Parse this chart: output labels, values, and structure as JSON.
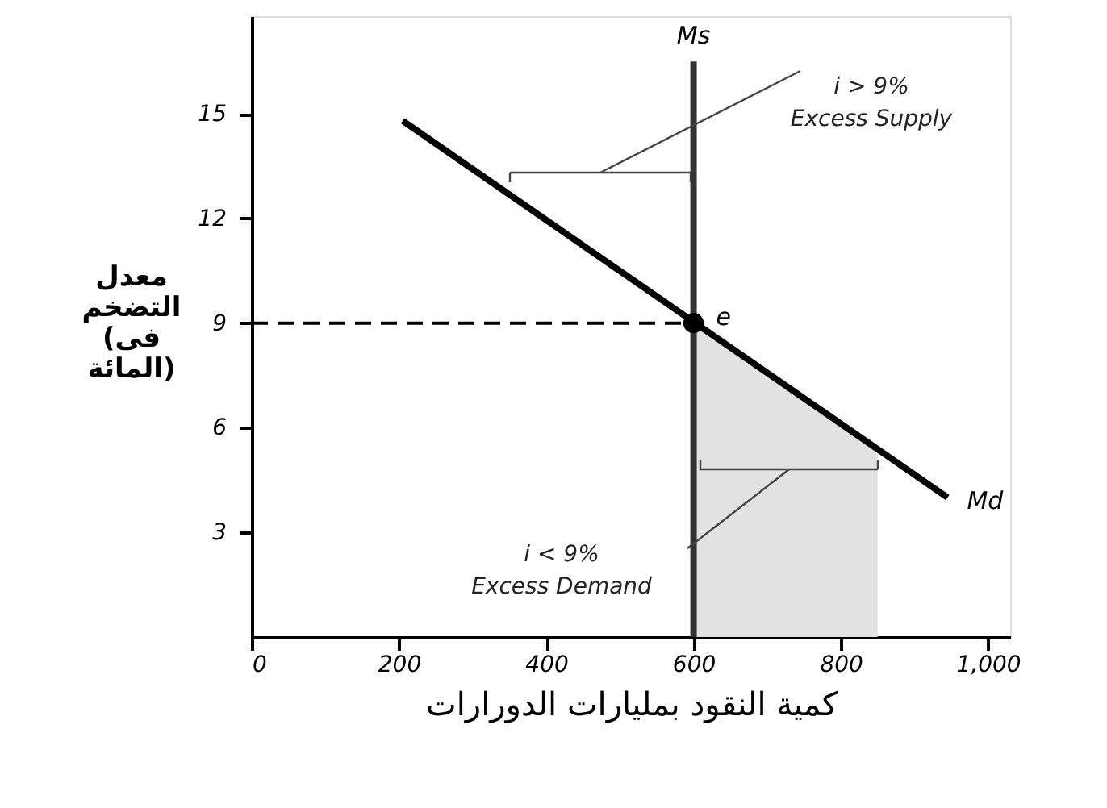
{
  "chart_data": {
    "type": "line",
    "xlabel": "كمية النقود بمليارات الدورارات",
    "ylabel": "معدل التضخم (فى المائة)",
    "xlim": [
      0,
      1030
    ],
    "ylim": [
      0,
      17.8
    ],
    "xticks": [
      0,
      200,
      400,
      600,
      800,
      {
        "value": 1000,
        "label": "1,000"
      }
    ],
    "yticks": [
      3,
      6,
      9,
      12,
      15
    ],
    "grid": false,
    "legend": false,
    "series": [
      {
        "type": "area",
        "x": [
          600,
          850
        ],
        "values": [
          9.0,
          5.4
        ],
        "color": "#e2e2e2"
      },
      {
        "type": "line",
        "x": [
          0,
          600
        ],
        "values": [
          9,
          9
        ],
        "color": "#000000",
        "line_style": "dashed"
      },
      {
        "name": "Ms",
        "type": "line",
        "x": [
          600,
          600
        ],
        "values": [
          0,
          16.5
        ],
        "color": "#333333"
      },
      {
        "name": "Md",
        "type": "line",
        "x": [
          205,
          945
        ],
        "values": [
          14.8,
          4.0
        ],
        "color": "#000000"
      },
      {
        "name": "e",
        "type": "scatter",
        "x": [
          600
        ],
        "values": [
          9
        ],
        "color": "#000000",
        "marker": "circle"
      }
    ],
    "annotations": [
      "i > 9%\nExcess Supply",
      "i < 9%\nExcess Demand"
    ]
  }
}
